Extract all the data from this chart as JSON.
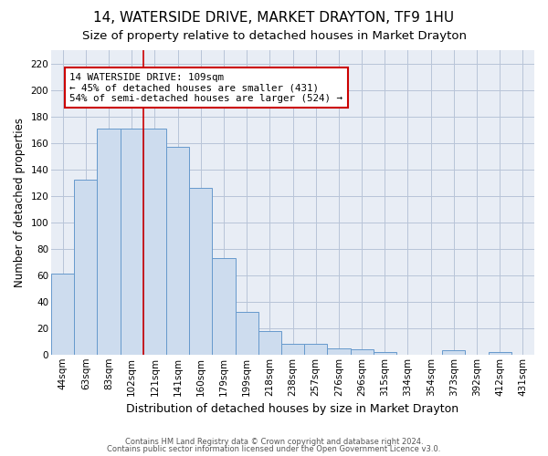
{
  "title": "14, WATERSIDE DRIVE, MARKET DRAYTON, TF9 1HU",
  "subtitle": "Size of property relative to detached houses in Market Drayton",
  "xlabel": "Distribution of detached houses by size in Market Drayton",
  "ylabel": "Number of detached properties",
  "categories": [
    "44sqm",
    "63sqm",
    "83sqm",
    "102sqm",
    "121sqm",
    "141sqm",
    "160sqm",
    "179sqm",
    "199sqm",
    "218sqm",
    "238sqm",
    "257sqm",
    "276sqm",
    "296sqm",
    "315sqm",
    "334sqm",
    "354sqm",
    "373sqm",
    "392sqm",
    "412sqm",
    "431sqm"
  ],
  "values": [
    61,
    132,
    171,
    171,
    171,
    157,
    126,
    73,
    32,
    18,
    8,
    8,
    5,
    4,
    2,
    0,
    0,
    3,
    0,
    2,
    0
  ],
  "bar_color": "#cddcee",
  "bar_edge_color": "#6699cc",
  "property_line_x": 3.5,
  "property_line_color": "#cc0000",
  "annotation_text": "14 WATERSIDE DRIVE: 109sqm\n← 45% of detached houses are smaller (431)\n54% of semi-detached houses are larger (524) →",
  "annotation_box_color": "#ffffff",
  "annotation_box_edge": "#cc0000",
  "ylim": [
    0,
    230
  ],
  "yticks": [
    0,
    20,
    40,
    60,
    80,
    100,
    120,
    140,
    160,
    180,
    200,
    220
  ],
  "footer_line1": "Contains HM Land Registry data © Crown copyright and database right 2024.",
  "footer_line2": "Contains public sector information licensed under the Open Government Licence v3.0.",
  "background_color": "#ffffff",
  "plot_bg_color": "#e8edf5",
  "grid_color": "#b8c4d8",
  "title_fontsize": 11,
  "subtitle_fontsize": 9.5,
  "ylabel_fontsize": 8.5,
  "xlabel_fontsize": 9,
  "tick_fontsize": 7.5,
  "footer_fontsize": 6
}
